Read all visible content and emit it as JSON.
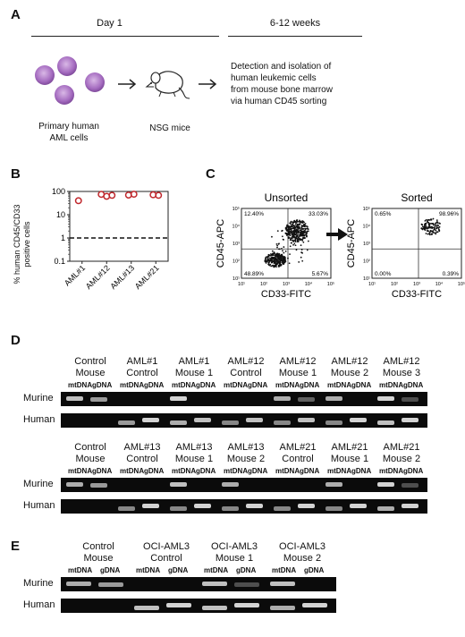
{
  "panels": {
    "a": "A",
    "b": "B",
    "c": "C",
    "d": "D",
    "e": "E"
  },
  "panel_a": {
    "day1": "Day 1",
    "weeks": "6-12 weeks",
    "cells_label": [
      "Primary human",
      "AML cells"
    ],
    "mice_label": "NSG mice",
    "detection": [
      "Detection and isolation of",
      "human leukemic cells",
      "from mouse bone marrow",
      "via human CD45 sorting"
    ],
    "cell_color": "#a56cc0",
    "arrow_icon": "right-arrow-icon"
  },
  "chart_data": [
    {
      "type": "scatter",
      "ylabel": "% human CD45/CD33 positive cells",
      "ylabel_lines": [
        "% human CD45/CD33",
        "positive cells"
      ],
      "yscale": "log",
      "ylim": [
        0.1,
        100
      ],
      "yticks": [
        "100",
        "10",
        "1",
        "0.1"
      ],
      "categories": [
        "AML#1",
        "AML#12",
        "AML#13",
        "AML#21"
      ],
      "points": [
        {
          "category": "AML#1",
          "values": [
            40
          ]
        },
        {
          "category": "AML#12",
          "values": [
            75,
            62,
            68
          ]
        },
        {
          "category": "AML#13",
          "values": [
            70,
            76
          ]
        },
        {
          "category": "AML#21",
          "values": [
            72,
            68
          ]
        }
      ],
      "reference_line": 1,
      "marker_color": "#c0282d"
    },
    {
      "type": "scatter",
      "title": "Unsorted",
      "xlabel": "CD33-FITC",
      "ylabel": "CD45-APC",
      "quadrants": {
        "ul": "12.40%",
        "ur": "33.03%",
        "ll": "48.89%",
        "lr": "5.67%"
      },
      "xticks": [
        "10¹",
        "10²",
        "10³",
        "10⁴",
        "10⁵"
      ],
      "yticks": [
        "10⁵",
        "10⁴",
        "10³",
        "10²",
        "10¹"
      ]
    },
    {
      "type": "scatter",
      "title": "Sorted",
      "xlabel": "CD33-FITC",
      "ylabel": "CD45-APC",
      "quadrants": {
        "ul": "0.65%",
        "ur": "98.96%",
        "ll": "0.00%",
        "lr": "0.39%"
      },
      "xticks": [
        "10¹",
        "10²",
        "10³",
        "10⁴",
        "10⁵"
      ],
      "yticks": [
        "10⁵",
        "10⁴",
        "10³",
        "10²",
        "10¹"
      ]
    }
  ],
  "panel_d": {
    "lane_labels": [
      "mtDNA",
      "gDNA"
    ],
    "rows": [
      "Murine",
      "Human"
    ],
    "top_groups": [
      [
        "Control",
        "Mouse"
      ],
      [
        "AML#1",
        "Control"
      ],
      [
        "AML#1",
        "Mouse 1"
      ],
      [
        "AML#12",
        "Control"
      ],
      [
        "AML#12",
        "Mouse 1"
      ],
      [
        "AML#12",
        "Mouse 2"
      ],
      [
        "AML#12",
        "Mouse 3"
      ]
    ],
    "bottom_groups": [
      [
        "Control",
        "Mouse"
      ],
      [
        "AML#13",
        "Control"
      ],
      [
        "AML#13",
        "Mouse 1"
      ],
      [
        "AML#13",
        "Mouse 2"
      ],
      [
        "AML#21",
        "Control"
      ],
      [
        "AML#21",
        "Mouse 1"
      ],
      [
        "AML#21",
        "Mouse 2"
      ]
    ]
  },
  "panel_e": {
    "lane_labels": [
      "mtDNA",
      "gDNA"
    ],
    "rows": [
      "Murine",
      "Human"
    ],
    "groups": [
      [
        "Control",
        "Mouse"
      ],
      [
        "OCI-AML3",
        "Control"
      ],
      [
        "OCI-AML3",
        "Mouse 1"
      ],
      [
        "OCI-AML3",
        "Mouse 2"
      ]
    ]
  }
}
